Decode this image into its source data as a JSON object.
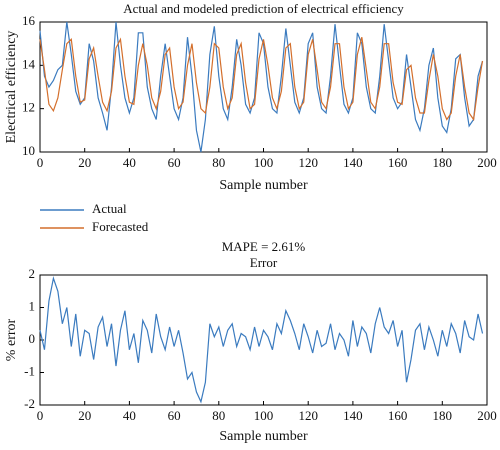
{
  "chart_data": [
    {
      "type": "line",
      "title": "Actual and modeled prediction of electrical efficiency",
      "x_label": "Sample number",
      "y_label": "Electrical efficiency",
      "xlim": [
        0,
        200
      ],
      "xticks": [
        0,
        20,
        40,
        60,
        80,
        100,
        120,
        140,
        160,
        180,
        200
      ],
      "ylim": [
        10,
        16
      ],
      "yticks": [
        10,
        12,
        14,
        16
      ],
      "legend": "below",
      "x": [
        0,
        2,
        4,
        6,
        8,
        10,
        12,
        14,
        16,
        18,
        20,
        22,
        24,
        26,
        28,
        30,
        32,
        34,
        36,
        38,
        40,
        42,
        44,
        46,
        48,
        50,
        52,
        54,
        56,
        58,
        60,
        62,
        64,
        66,
        68,
        70,
        72,
        74,
        76,
        78,
        80,
        82,
        84,
        86,
        88,
        90,
        92,
        94,
        96,
        98,
        100,
        102,
        104,
        106,
        108,
        110,
        112,
        114,
        116,
        118,
        120,
        122,
        124,
        126,
        128,
        130,
        132,
        134,
        136,
        138,
        140,
        142,
        144,
        146,
        148,
        150,
        152,
        154,
        156,
        158,
        160,
        162,
        164,
        166,
        168,
        170,
        172,
        174,
        176,
        178,
        180,
        182,
        184,
        186,
        188,
        190,
        192,
        194,
        196,
        198
      ],
      "series": [
        {
          "name": "Actual",
          "color": "#3b7bbf",
          "values": [
            15.6,
            13.5,
            13.0,
            13.3,
            13.8,
            14.0,
            16.0,
            14.5,
            12.8,
            12.2,
            12.5,
            15.0,
            14.2,
            12.5,
            11.8,
            11.0,
            13.0,
            16.0,
            14.0,
            12.5,
            11.8,
            12.5,
            15.5,
            15.5,
            13.0,
            12.0,
            11.5,
            13.5,
            15.0,
            13.5,
            12.0,
            11.5,
            12.5,
            15.3,
            13.5,
            11.0,
            10.0,
            11.5,
            14.5,
            15.8,
            13.5,
            12.0,
            11.5,
            13.0,
            15.2,
            14.0,
            12.2,
            11.8,
            12.5,
            15.5,
            15.0,
            13.0,
            12.0,
            11.8,
            13.5,
            15.7,
            14.0,
            12.3,
            11.8,
            12.5,
            15.0,
            15.5,
            13.0,
            12.0,
            11.8,
            13.5,
            15.9,
            14.0,
            12.2,
            11.8,
            12.5,
            15.5,
            15.0,
            13.0,
            12.0,
            11.8,
            13.5,
            15.9,
            14.2,
            12.5,
            12.0,
            12.3,
            14.5,
            13.0,
            11.5,
            11.0,
            12.0,
            14.0,
            14.8,
            12.5,
            11.2,
            10.9,
            12.0,
            14.3,
            14.5,
            12.5,
            11.2,
            11.5,
            13.5,
            14.2
          ]
        },
        {
          "name": "Forecasted",
          "color": "#d46f2c",
          "values": [
            15.2,
            13.8,
            12.2,
            11.9,
            12.5,
            13.8,
            15.0,
            15.2,
            13.5,
            12.3,
            12.4,
            14.3,
            14.8,
            13.5,
            12.3,
            11.9,
            12.8,
            14.8,
            15.2,
            13.5,
            12.3,
            12.2,
            14.0,
            15.0,
            14.0,
            12.5,
            12.0,
            12.8,
            14.5,
            14.8,
            13.0,
            12.0,
            12.3,
            14.0,
            15.0,
            13.2,
            12.0,
            11.8,
            13.0,
            15.0,
            14.8,
            13.0,
            12.0,
            12.5,
            14.5,
            15.0,
            13.2,
            12.0,
            12.2,
            14.3,
            15.2,
            14.0,
            12.5,
            12.0,
            12.8,
            14.8,
            15.0,
            13.0,
            12.0,
            12.3,
            14.5,
            15.2,
            13.8,
            12.3,
            12.0,
            13.0,
            15.0,
            15.0,
            13.0,
            12.0,
            12.3,
            14.5,
            15.3,
            13.8,
            12.3,
            12.0,
            13.0,
            15.0,
            15.0,
            13.2,
            12.3,
            12.2,
            13.8,
            14.0,
            12.5,
            11.8,
            11.8,
            13.3,
            14.5,
            13.5,
            12.0,
            11.5,
            11.8,
            13.5,
            14.5,
            13.0,
            11.8,
            11.5,
            13.0,
            14.2
          ]
        }
      ]
    },
    {
      "type": "line",
      "title": "Error",
      "annotation": "MAPE = 2.61%",
      "x_label": "Sample number",
      "y_label": "% error",
      "xlim": [
        0,
        200
      ],
      "xticks": [
        0,
        20,
        40,
        60,
        80,
        100,
        120,
        140,
        160,
        180,
        200
      ],
      "ylim": [
        -2,
        2
      ],
      "yticks": [
        -2,
        -1,
        0,
        1,
        2
      ],
      "x": [
        0,
        2,
        4,
        6,
        8,
        10,
        12,
        14,
        16,
        18,
        20,
        22,
        24,
        26,
        28,
        30,
        32,
        34,
        36,
        38,
        40,
        42,
        44,
        46,
        48,
        50,
        52,
        54,
        56,
        58,
        60,
        62,
        64,
        66,
        68,
        70,
        72,
        74,
        76,
        78,
        80,
        82,
        84,
        86,
        88,
        90,
        92,
        94,
        96,
        98,
        100,
        102,
        104,
        106,
        108,
        110,
        112,
        114,
        116,
        118,
        120,
        122,
        124,
        126,
        128,
        130,
        132,
        134,
        136,
        138,
        140,
        142,
        144,
        146,
        148,
        150,
        152,
        154,
        156,
        158,
        160,
        162,
        164,
        166,
        168,
        170,
        172,
        174,
        176,
        178,
        180,
        182,
        184,
        186,
        188,
        190,
        192,
        194,
        196,
        198
      ],
      "series": [
        {
          "color": "#3b7bbf",
          "values": [
            0.3,
            -0.3,
            1.2,
            1.9,
            1.5,
            0.5,
            1.0,
            -0.2,
            0.8,
            -0.5,
            0.3,
            0.2,
            -0.6,
            0.4,
            0.7,
            -0.2,
            0.5,
            -0.8,
            0.3,
            0.9,
            -0.3,
            0.2,
            -0.7,
            0.6,
            0.3,
            -0.4,
            0.8,
            0.1,
            -0.3,
            0.4,
            -0.2,
            0.3,
            -0.4,
            -1.2,
            -1.0,
            -1.6,
            -1.9,
            -1.3,
            0.5,
            0.1,
            0.4,
            -0.2,
            0.3,
            0.5,
            -0.2,
            0.2,
            0.1,
            -0.3,
            0.4,
            -0.2,
            0.3,
            0.1,
            -0.3,
            0.5,
            0.2,
            0.9,
            0.6,
            0.2,
            -0.3,
            0.5,
            0.1,
            -0.4,
            0.3,
            -0.2,
            -0.1,
            0.5,
            -0.3,
            0.2,
            0.0,
            -0.5,
            0.6,
            -0.2,
            0.4,
            0.2,
            -0.4,
            0.5,
            1.0,
            0.4,
            0.2,
            0.6,
            -0.2,
            0.3,
            -1.3,
            -0.6,
            0.3,
            0.5,
            -0.3,
            0.4,
            0.0,
            -0.5,
            0.3,
            -0.2,
            0.5,
            0.2,
            -0.4,
            0.6,
            0.1,
            0.0,
            0.8,
            0.2
          ]
        }
      ]
    }
  ]
}
